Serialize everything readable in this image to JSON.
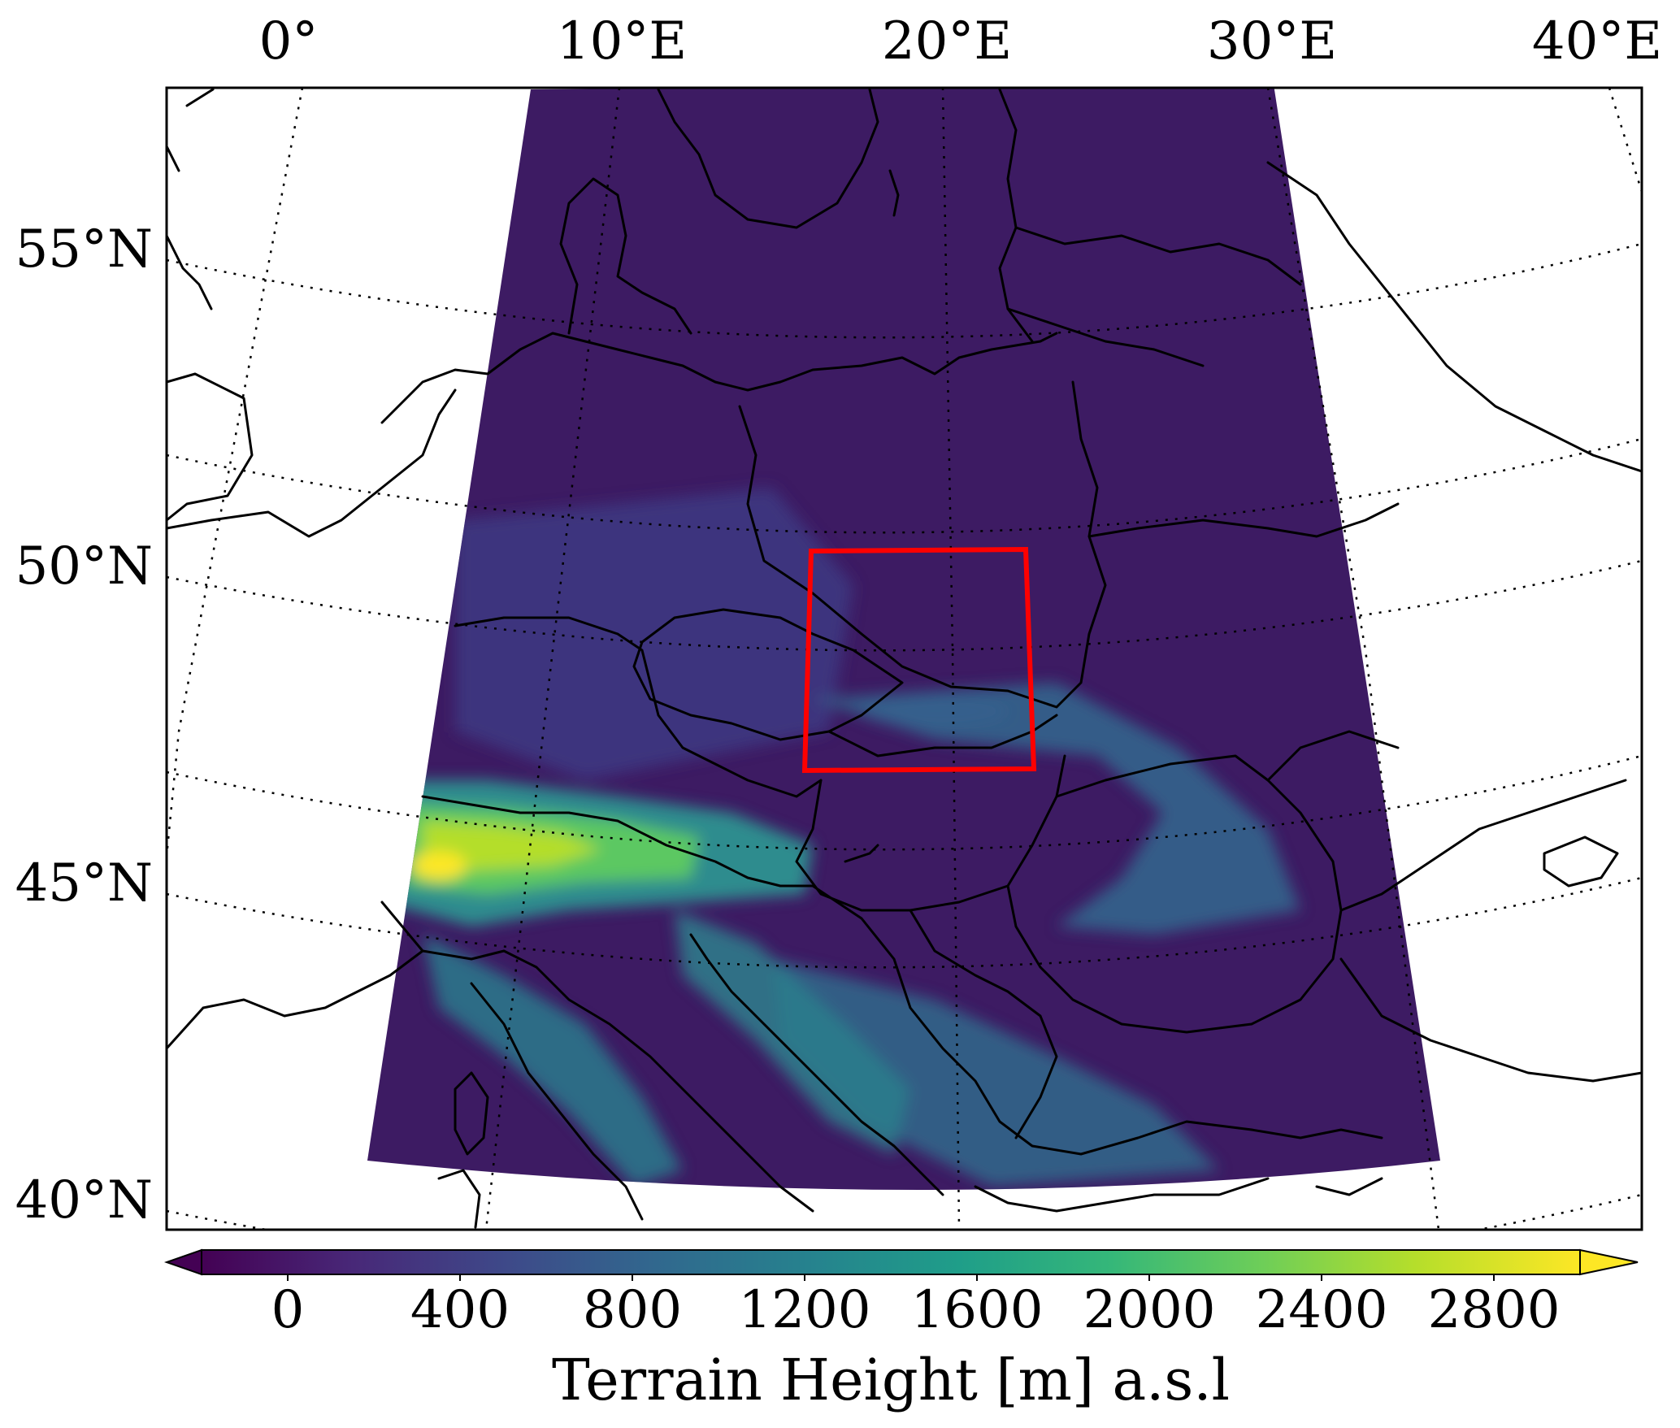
{
  "map": {
    "title": "",
    "lon_labels": [
      "0°",
      "10°E",
      "20°E",
      "30°E",
      "40°E"
    ],
    "lat_labels": [
      "55°N",
      "50°N",
      "45°N",
      "40°N"
    ],
    "domain_fill_color": "#3d1b63",
    "domain_highlight_color": "#3f4a8a",
    "alps_colors": [
      "#2d8c8e",
      "#5bc862",
      "#b4de2c",
      "#fde725"
    ],
    "subdomain_box": {
      "color": "#ff0000",
      "label": ""
    }
  },
  "colorbar": {
    "ticks": [
      "0",
      "400",
      "800",
      "1200",
      "1600",
      "2000",
      "2400",
      "2800"
    ],
    "label": "Terrain Height [m] a.s.l",
    "min": -200,
    "max": 3000,
    "extend": "both",
    "colormap": [
      "#440154",
      "#482878",
      "#3e4989",
      "#31688e",
      "#26828e",
      "#1f9e89",
      "#35b779",
      "#6ece58",
      "#b5de2b",
      "#fde725"
    ]
  }
}
